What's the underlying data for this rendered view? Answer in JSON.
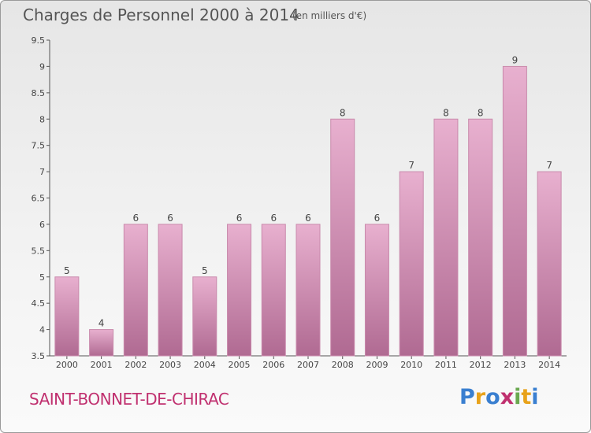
{
  "header": {
    "title": "Charges de Personnel 2000 à 2014",
    "subtitle": "(en milliers d'€)"
  },
  "footer": {
    "commune": "SAINT-BONNET-DE-CHIRAC",
    "logo": "Proxiti",
    "logo_colors": [
      "#3a7fd0",
      "#e8a21a",
      "#3a7fd0",
      "#c0306f",
      "#6aa84f",
      "#e8a21a",
      "#3a7fd0"
    ]
  },
  "colors": {
    "bar_top": "#e8b0cf",
    "bar_bottom": "#b06a92",
    "bar_edge": "#c98aac",
    "title": "#555555",
    "commune": "#c0306f"
  },
  "chart_data": {
    "type": "bar",
    "title": "Charges de Personnel 2000 à 2014",
    "subtitle": "(en milliers d'€)",
    "categories": [
      "2000",
      "2001",
      "2002",
      "2003",
      "2004",
      "2005",
      "2006",
      "2007",
      "2008",
      "2009",
      "2010",
      "2011",
      "2012",
      "2013",
      "2014"
    ],
    "values": [
      5,
      4,
      6,
      6,
      5,
      6,
      6,
      6,
      8,
      6,
      7,
      8,
      8,
      9,
      7
    ],
    "ylim": [
      3.5,
      9.5
    ],
    "yticks": [
      "3.5",
      "4",
      "4.5",
      "5",
      "5.5",
      "6",
      "6.5",
      "7",
      "7.5",
      "8",
      "8.5",
      "9",
      "9.5"
    ],
    "grid": false,
    "data_labels": true
  }
}
